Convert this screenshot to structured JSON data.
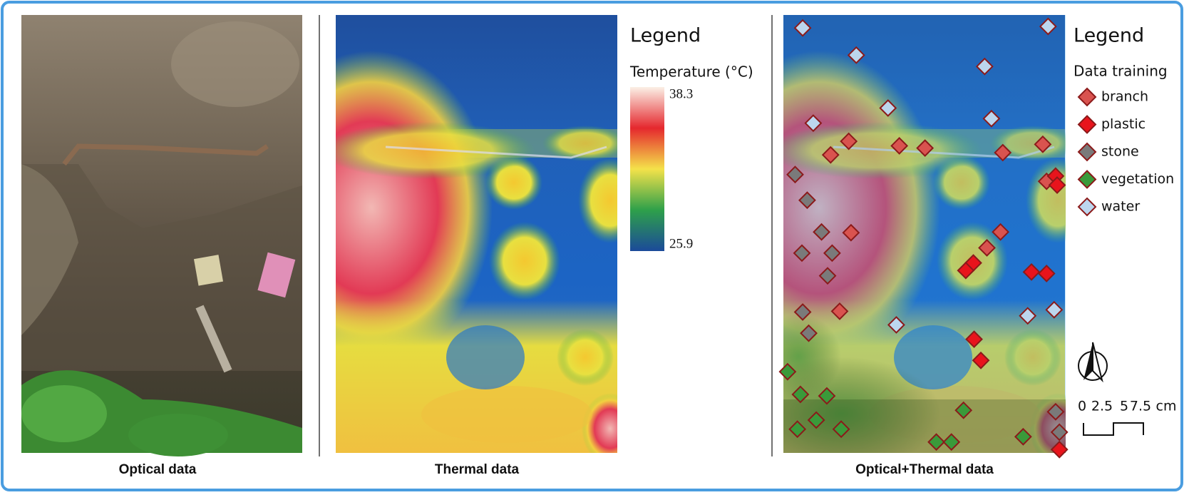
{
  "panels": [
    {
      "caption": "Optical data"
    },
    {
      "caption": "Thermal data"
    },
    {
      "caption": "Optical+Thermal data"
    }
  ],
  "thermal_legend": {
    "title": "Legend",
    "subtitle": "Temperature (°C)",
    "max": 38.3,
    "min": 25.9
  },
  "training_legend": {
    "title": "Legend",
    "subtitle": "Data training",
    "classes": [
      {
        "name": "branch",
        "color": "#d9534f"
      },
      {
        "name": "plastic",
        "color": "#e8141c"
      },
      {
        "name": "stone",
        "color": "#7a7a7a"
      },
      {
        "name": "vegetation",
        "color": "#3a9a3a"
      },
      {
        "name": "water",
        "color": "#bcd6ee"
      }
    ]
  },
  "scale_bar": {
    "ticks": [
      0,
      2.5,
      5,
      7.5
    ],
    "unit": "cm"
  }
}
